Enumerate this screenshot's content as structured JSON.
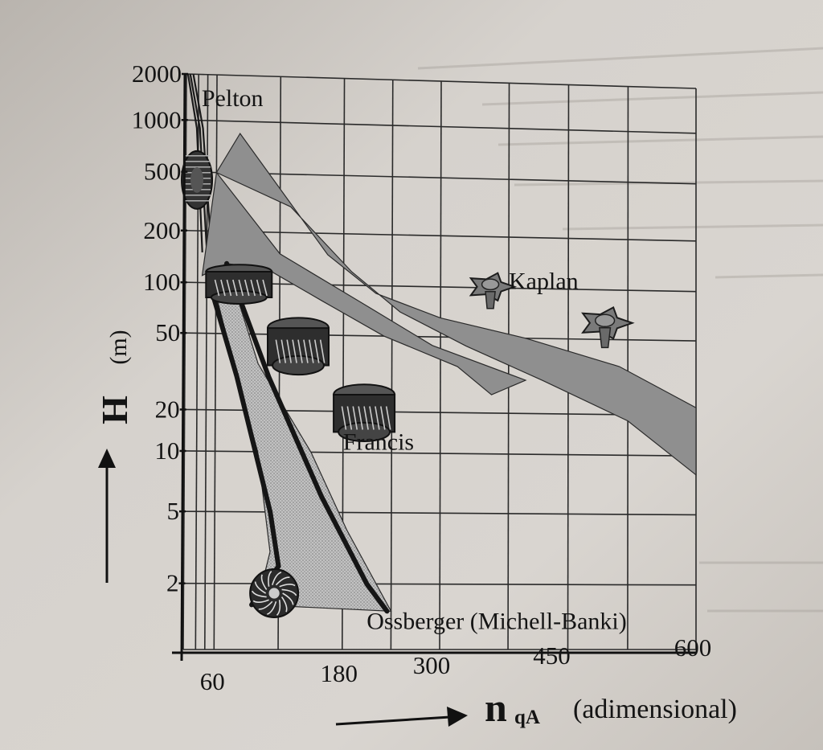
{
  "chart_data": {
    "type": "area",
    "x_ticks": [
      "60",
      "180",
      "300",
      "450",
      "600"
    ],
    "y_ticks": [
      "2000",
      "1000",
      "500",
      "200",
      "100",
      "50",
      "20",
      "10",
      "5",
      "2"
    ],
    "xlabel": {
      "main": "n",
      "sub": "qA",
      "unit": "(adimensional)"
    },
    "ylabel": {
      "main": "H",
      "unit": "(m)"
    },
    "ylim": [
      1,
      2000
    ],
    "y_scale": "log",
    "regions": [
      {
        "label": "Pelton",
        "boundary_lines": [
          [
            [
              22,
              2000
            ],
            [
              34,
              900
            ],
            [
              42,
              150
            ]
          ],
          [
            [
              25,
              2000
            ],
            [
              38,
              900
            ],
            [
              48,
              150
            ]
          ],
          [
            [
              29,
              2000
            ],
            [
              42,
              900
            ],
            [
              54,
              150
            ]
          ]
        ]
      },
      {
        "label": "Francis",
        "polygon": [
          [
            42,
            110
          ],
          [
            70,
            130
          ],
          [
            110,
            120
          ],
          [
            160,
            80
          ],
          [
            230,
            50
          ],
          [
            320,
            35
          ],
          [
            360,
            25
          ],
          [
            400,
            30
          ],
          [
            290,
            45
          ],
          [
            200,
            80
          ],
          [
            120,
            150
          ],
          [
            60,
            500
          ]
        ]
      },
      {
        "label": "Kaplan",
        "polygon": [
          [
            82,
            850
          ],
          [
            165,
            150
          ],
          [
            220,
            90
          ],
          [
            300,
            65
          ],
          [
            400,
            50
          ],
          [
            510,
            36
          ],
          [
            600,
            22
          ],
          [
            600,
            8
          ],
          [
            520,
            18
          ],
          [
            420,
            30
          ],
          [
            330,
            45
          ],
          [
            250,
            70
          ],
          [
            190,
            120
          ],
          [
            130,
            300
          ],
          [
            60,
            500
          ]
        ]
      },
      {
        "label": "Ossberger (Michell-Banki)",
        "polygon": [
          [
            55,
            105
          ],
          [
            70,
            130
          ],
          [
            100,
            35
          ],
          [
            150,
            10
          ],
          [
            185,
            4
          ],
          [
            240,
            1.5
          ],
          [
            100,
            1.6
          ],
          [
            112,
            3
          ],
          [
            100,
            10
          ],
          [
            80,
            30
          ]
        ]
      }
    ]
  }
}
